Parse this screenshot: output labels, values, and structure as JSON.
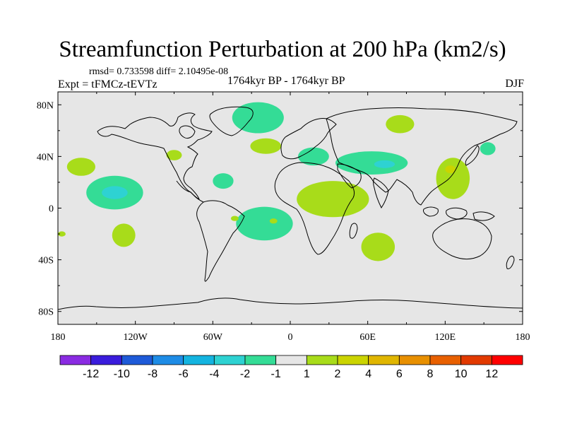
{
  "title": "Streamfunction Perturbation at 200 hPa (km2/s)",
  "stats_line": "rmsd= 0.733598  diff= 2.10495e-08",
  "experiment_label": "Expt = tFMCz-tEVTz",
  "period_label": "1764kyr BP - 1764kyr BP",
  "season_label": "DJF",
  "colors": {
    "background": "#e6e6e6",
    "positive_small": "#a8dc1a",
    "positive_mid": "#e0b600",
    "negative_small": "#34dc96",
    "negative_mid": "#2ed2d2"
  },
  "chart_data": {
    "type": "contour-map",
    "variable": "Streamfunction Perturbation at 200 hPa",
    "units": "km2/s",
    "lon_range": [
      -180,
      180
    ],
    "lat_range": [
      -90,
      90
    ],
    "x_ticks": [
      {
        "value": -180,
        "label": "180"
      },
      {
        "value": -120,
        "label": "120W"
      },
      {
        "value": -60,
        "label": "60W"
      },
      {
        "value": 0,
        "label": "0"
      },
      {
        "value": 60,
        "label": "60E"
      },
      {
        "value": 120,
        "label": "120E"
      },
      {
        "value": 180,
        "label": "180"
      }
    ],
    "y_ticks": [
      {
        "value": 80,
        "label": "80N"
      },
      {
        "value": 40,
        "label": "40N"
      },
      {
        "value": 0,
        "label": "0"
      },
      {
        "value": -40,
        "label": "40S"
      },
      {
        "value": -80,
        "label": "80S"
      }
    ],
    "colorbar": {
      "levels": [
        -12,
        -10,
        -8,
        -6,
        -4,
        -2,
        -1,
        1,
        2,
        4,
        6,
        8,
        10,
        12
      ],
      "labels": [
        "-12",
        "-10",
        "-8",
        "-6",
        "-4",
        "-2",
        "-1",
        "1",
        "2",
        "4",
        "6",
        "8",
        "10",
        "12"
      ],
      "colors": [
        "#8a2be2",
        "#3a1cdc",
        "#1e5ad8",
        "#1e8ce6",
        "#14b4e0",
        "#2ed2d2",
        "#34dc96",
        "#e6e6e6",
        "#a8dc1a",
        "#cbd400",
        "#e0b600",
        "#e89000",
        "#e86000",
        "#e23a00",
        "#ff0000"
      ]
    },
    "regions": [
      {
        "lon": -25,
        "lat": 70,
        "rlon": 20,
        "rlat": 12,
        "value": -1.5
      },
      {
        "lon": -19,
        "lat": 48,
        "rlon": 12,
        "rlat": 6,
        "value": 1.5
      },
      {
        "lon": -90,
        "lat": 41,
        "rlon": 6,
        "rlat": 4,
        "value": 1.5
      },
      {
        "lon": -162,
        "lat": 32,
        "rlon": 11,
        "rlat": 7,
        "value": 1.5
      },
      {
        "lon": -136,
        "lat": 12,
        "rlon": 22,
        "rlat": 13,
        "value": -1.5
      },
      {
        "lon": -136,
        "lat": 12,
        "rlon": 10,
        "rlat": 5,
        "value": -2.5
      },
      {
        "lon": -52,
        "lat": 21,
        "rlon": 8,
        "rlat": 6,
        "value": -1.5
      },
      {
        "lon": 18,
        "lat": 40,
        "rlon": 12,
        "rlat": 7,
        "value": -1.5
      },
      {
        "lon": 63,
        "lat": 35,
        "rlon": 28,
        "rlat": 9,
        "value": -1.5
      },
      {
        "lon": 73,
        "lat": 34,
        "rlon": 8,
        "rlat": 3,
        "value": -2.5
      },
      {
        "lon": 85,
        "lat": 65,
        "rlon": 11,
        "rlat": 7,
        "value": 1.5
      },
      {
        "lon": 153,
        "lat": 46,
        "rlon": 6,
        "rlat": 5,
        "value": -1.5
      },
      {
        "lon": 126,
        "lat": 23,
        "rlon": 13,
        "rlat": 16,
        "value": 1.5
      },
      {
        "lon": 124,
        "lat": 30,
        "rlon": 4,
        "rlat": 3,
        "value": 3
      },
      {
        "lon": 33,
        "lat": 7,
        "rlon": 28,
        "rlat": 14,
        "value": 1.5
      },
      {
        "lon": -20,
        "lat": -12,
        "rlon": 22,
        "rlat": 13,
        "value": -1.5
      },
      {
        "lon": 68,
        "lat": -30,
        "rlon": 13,
        "rlat": 11,
        "value": 1.5
      },
      {
        "lon": -129,
        "lat": -21,
        "rlon": 9,
        "rlat": 9,
        "value": 1.5
      },
      {
        "lon": -177,
        "lat": -20,
        "rlon": 3,
        "rlat": 2,
        "value": 1.5
      },
      {
        "lon": -43,
        "lat": -8,
        "rlon": 3,
        "rlat": 2,
        "value": 1.5
      },
      {
        "lon": -13,
        "lat": -10,
        "rlon": 3,
        "rlat": 2,
        "value": 1.5
      }
    ]
  }
}
